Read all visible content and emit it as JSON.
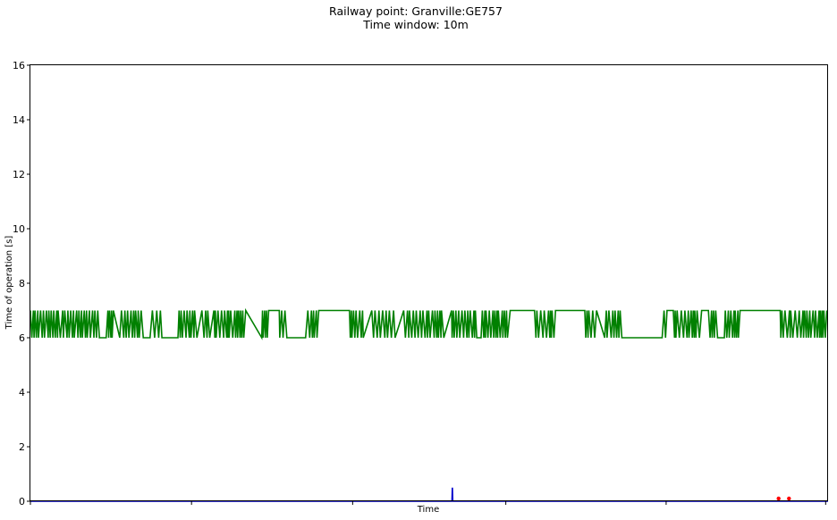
{
  "chart_data": {
    "type": "line",
    "title": [
      "Railway point: Granville:GE757",
      "Time window: 10m"
    ],
    "xlabel": "Time",
    "ylabel": "Time of operation [s]",
    "ylim": [
      0,
      16
    ],
    "yticks": [
      0,
      2,
      4,
      6,
      8,
      10,
      12,
      14,
      16
    ],
    "xlim": [
      0,
      1000
    ],
    "xticks": [
      0,
      202,
      404,
      596,
      797,
      997
    ],
    "grid": false,
    "series": [
      {
        "color": "#008000",
        "style": "line",
        "toggle_low": 6,
        "toggle_high": 7,
        "dense_segments": [
          [
            0,
            85
          ],
          [
            95,
            105
          ],
          [
            112,
            140
          ],
          [
            150,
            165
          ],
          [
            185,
            210
          ],
          [
            215,
            225
          ],
          [
            230,
            270
          ],
          [
            290,
            300
          ],
          [
            312,
            320
          ],
          [
            345,
            360
          ],
          [
            400,
            420
          ],
          [
            428,
            460
          ],
          [
            468,
            520
          ],
          [
            528,
            560
          ],
          [
            565,
            600
          ],
          [
            632,
            660
          ],
          [
            695,
            710
          ],
          [
            720,
            740
          ],
          [
            792,
            800
          ],
          [
            806,
            840
          ],
          [
            850,
            860
          ],
          [
            870,
            890
          ],
          [
            940,
            1000
          ]
        ],
        "plateau_high": [
          [
            300,
            312
          ],
          [
            360,
            400
          ],
          [
            600,
            632
          ],
          [
            660,
            695
          ],
          [
            800,
            806
          ],
          [
            840,
            850
          ],
          [
            890,
            940
          ]
        ],
        "plateau_low": [
          [
            85,
            95
          ],
          [
            140,
            150
          ],
          [
            165,
            185
          ],
          [
            320,
            345
          ],
          [
            560,
            565
          ],
          [
            740,
            792
          ],
          [
            860,
            870
          ]
        ]
      },
      {
        "color": "#0000cc",
        "style": "line",
        "points": [
          [
            0,
            0
          ],
          [
            528.5,
            0
          ],
          [
            529,
            0.5
          ],
          [
            529.5,
            0
          ],
          [
            1000,
            0
          ]
        ]
      },
      {
        "color": "#ff0000",
        "style": "scatter",
        "points": [
          [
            938,
            0.1
          ],
          [
            951,
            0.1
          ]
        ]
      }
    ]
  }
}
